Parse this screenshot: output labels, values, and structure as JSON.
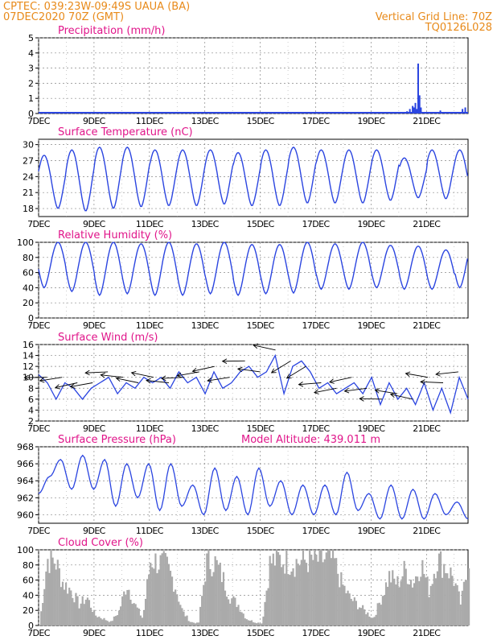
{
  "header": {
    "line1": "CPTEC:   039:23W-09:49S   UAUA (BA)",
    "line2": "07DEC2020 70Z (GMT)",
    "right1": "Vertical Grid Line: 70Z",
    "right2": "TQ0126L028"
  },
  "colors": {
    "header": "#e88a1a",
    "title": "#e0158a",
    "line": "#2b45e0",
    "cloud": "#aaaaaa",
    "arrow": "#000000"
  },
  "chart_data": [
    {
      "type": "bar",
      "title": "Precipitation (mm/h)",
      "ylim": [
        0,
        5
      ],
      "yticks": [
        0,
        1,
        2,
        3,
        4,
        5
      ],
      "xticks": [
        "7DEC",
        "9DEC",
        "11DEC",
        "13DEC",
        "15DEC",
        "17DEC",
        "19DEC",
        "21DEC"
      ],
      "xlim_days": [
        7,
        22.5
      ],
      "series": [
        {
          "x_days": [
            20.3,
            20.4,
            20.5,
            20.55,
            20.6,
            20.65,
            20.7,
            20.75,
            20.8,
            21.5,
            21.6,
            22.3,
            22.4
          ],
          "values": [
            0.15,
            0.3,
            0.5,
            0.4,
            0.7,
            0.3,
            3.3,
            1.2,
            0.4,
            0.2,
            0.1,
            0.3,
            0.4
          ]
        }
      ]
    },
    {
      "type": "line",
      "title": "Surface Temperature (nC)",
      "ylim": [
        16.5,
        31
      ],
      "yticks": [
        18,
        21,
        24,
        27,
        30
      ],
      "xticks": [
        "7DEC",
        "9DEC",
        "11DEC",
        "13DEC",
        "15DEC",
        "17DEC",
        "19DEC",
        "21DEC"
      ],
      "xlim_days": [
        7,
        22.5
      ],
      "series": [
        {
          "mins": [
            18,
            17.5,
            18,
            18.3,
            18.5,
            18.5,
            18.8,
            18.5,
            18.5,
            19,
            19,
            19,
            19.5,
            20,
            19.8,
            19.8
          ],
          "maxs": [
            28,
            29,
            29.5,
            29.5,
            29,
            29,
            29,
            28.5,
            29,
            29.5,
            29,
            29,
            29,
            27.5,
            29
          ]
        }
      ]
    },
    {
      "type": "line",
      "title": "Relative Humidity (%)",
      "ylim": [
        0,
        100
      ],
      "yticks": [
        0,
        20,
        40,
        60,
        80,
        100
      ],
      "xticks": [
        "7DEC",
        "9DEC",
        "11DEC",
        "13DEC",
        "15DEC",
        "17DEC",
        "19DEC",
        "21DEC"
      ],
      "xlim_days": [
        7,
        22.5
      ],
      "series": [
        {
          "maxs": [
            100,
            100,
            100,
            98,
            100,
            98,
            100,
            97,
            97,
            100,
            98,
            100,
            96,
            95,
            90,
            100
          ],
          "mins": [
            40,
            35,
            30,
            32,
            30,
            30,
            32,
            30,
            32,
            33,
            38,
            38,
            40,
            38,
            38,
            40
          ]
        }
      ]
    },
    {
      "type": "line",
      "title": "Surface Wind (m/s)",
      "ylim": [
        2,
        16
      ],
      "yticks": [
        2,
        4,
        6,
        8,
        10,
        12,
        14,
        16
      ],
      "xticks": [
        "7DEC",
        "9DEC",
        "11DEC",
        "13DEC",
        "15DEC",
        "17DEC",
        "19DEC",
        "21DEC"
      ],
      "xlim_days": [
        7,
        22.5
      ],
      "series": [
        {
          "name": "",
          "values": [
            10.5,
            9,
            6,
            9,
            8,
            6,
            8,
            9,
            10,
            7,
            9,
            8,
            10,
            9,
            10,
            8,
            11,
            9,
            10,
            7,
            11,
            8,
            9,
            11,
            12,
            10,
            11,
            14,
            7,
            12,
            13,
            11,
            8,
            9,
            7,
            8,
            9,
            7,
            10,
            5,
            9,
            6,
            8,
            5,
            9,
            4,
            8,
            3.5,
            10,
            6
          ]
        }
      ],
      "arrows": "wind direction vectors drawn on curve"
    },
    {
      "type": "line",
      "title": "Surface Pressure (hPa)",
      "annotation": "Model Altitude: 439.011 m",
      "ylim": [
        959,
        968
      ],
      "yticks": [
        960,
        962,
        964,
        966,
        968
      ],
      "xticks": [
        "7DEC",
        "9DEC",
        "11DEC",
        "13DEC",
        "15DEC",
        "17DEC",
        "19DEC",
        "21DEC"
      ],
      "xlim_days": [
        7,
        22.5
      ],
      "series": [
        {
          "values": [
            962.5,
            964.5,
            966.5,
            963,
            967,
            963,
            966.5,
            961,
            966,
            962,
            966,
            960.5,
            966,
            961,
            963.5,
            960,
            965.5,
            960.5,
            964.5,
            960,
            965.5,
            961,
            964,
            960,
            963.5,
            960,
            963.5,
            960,
            965,
            960.5,
            962.5,
            959.5,
            963.5,
            959.5,
            963,
            959.5,
            962.5,
            960,
            961.5,
            959.5
          ]
        }
      ]
    },
    {
      "type": "area",
      "title": "Cloud Cover (%)",
      "ylim": [
        0,
        100
      ],
      "yticks": [
        0,
        20,
        40,
        60,
        80,
        100
      ],
      "xticks": [
        "7DEC",
        "9DEC",
        "11DEC",
        "13DEC",
        "15DEC",
        "17DEC",
        "19DEC",
        "21DEC"
      ],
      "xlim_days": [
        7,
        22.5
      ],
      "series": [
        {
          "values": [
            0,
            95,
            92,
            60,
            50,
            30,
            40,
            15,
            10,
            5,
            20,
            60,
            30,
            10,
            95,
            90,
            85,
            60,
            20,
            5,
            3,
            90,
            92,
            70,
            40,
            30,
            10,
            5,
            3,
            90,
            95,
            93,
            90,
            92,
            94,
            93,
            95,
            94,
            60,
            40,
            30,
            20,
            10,
            40,
            70,
            60,
            80,
            60,
            90,
            50,
            95,
            85,
            70,
            30,
            95
          ]
        }
      ]
    }
  ]
}
